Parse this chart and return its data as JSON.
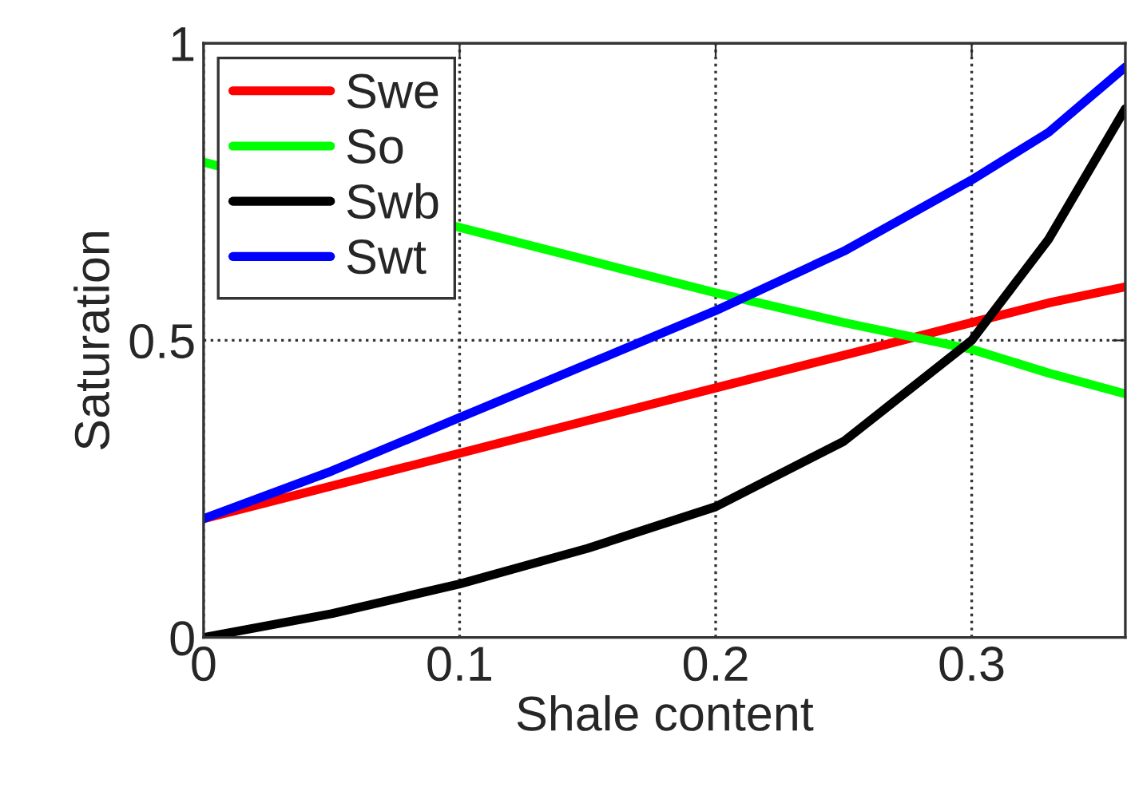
{
  "chart_data": {
    "type": "line",
    "xlabel": "Shale content",
    "ylabel": "Saturation",
    "x": [
      0,
      0.05,
      0.1,
      0.15,
      0.2,
      0.25,
      0.3,
      0.33,
      0.36
    ],
    "series": [
      {
        "name": "Swe",
        "color": "#ff0000",
        "values": [
          0.2,
          0.255,
          0.31,
          0.365,
          0.42,
          0.475,
          0.53,
          0.563,
          0.59
        ]
      },
      {
        "name": "So",
        "color": "#00ff00",
        "x": [
          0,
          0.12,
          0.15,
          0.2,
          0.25,
          0.3,
          0.33,
          0.36
        ],
        "values": [
          0.8,
          0.668,
          0.635,
          0.58,
          0.53,
          0.485,
          0.445,
          0.41
        ]
      },
      {
        "name": "Swb",
        "color": "#000000",
        "values": [
          0,
          0.04,
          0.09,
          0.15,
          0.22,
          0.33,
          0.5,
          0.67,
          0.89
        ]
      },
      {
        "name": "Swt",
        "color": "#0000ff",
        "values": [
          0.2,
          0.28,
          0.37,
          0.46,
          0.55,
          0.65,
          0.77,
          0.85,
          0.96
        ]
      }
    ],
    "xlim": [
      0,
      0.36
    ],
    "ylim": [
      0,
      1
    ],
    "xticks": [
      0,
      0.1,
      0.2,
      0.3
    ],
    "yticks": [
      0,
      0.5,
      1
    ],
    "grid": true,
    "legend": "top left",
    "line_style": "solid",
    "marker": "none"
  }
}
